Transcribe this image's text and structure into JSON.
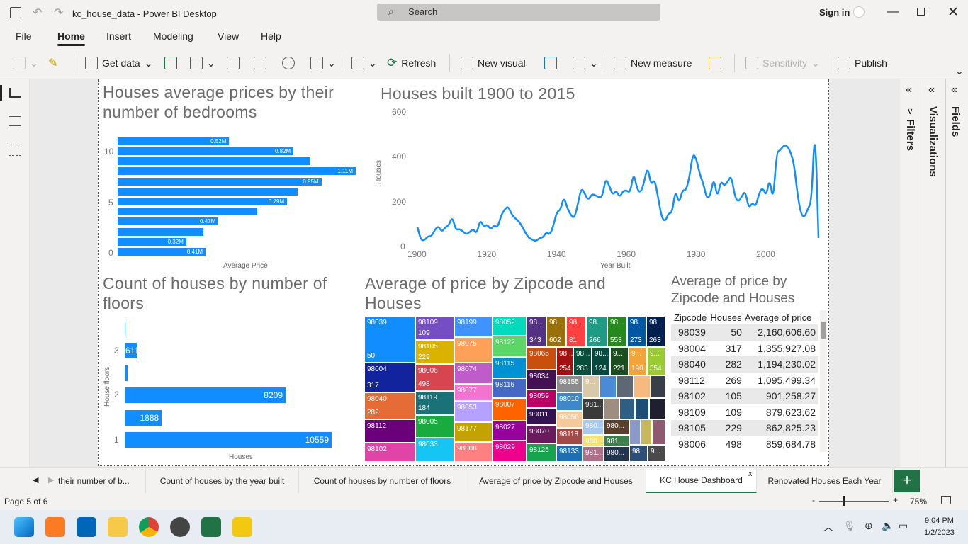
{
  "window": {
    "title": "kc_house_data - Power BI Desktop",
    "search_placeholder": "Search",
    "sign_in": "Sign in"
  },
  "menu": [
    "File",
    "Home",
    "Insert",
    "Modeling",
    "View",
    "Help"
  ],
  "ribbon": {
    "get_data": "Get data",
    "refresh": "Refresh",
    "new_visual": "New visual",
    "new_measure": "New measure",
    "sensitivity": "Sensitivity",
    "publish": "Publish"
  },
  "panes": {
    "filters": "Filters",
    "visualizations": "Visualizations",
    "fields": "Fields"
  },
  "bedrooms_chart": {
    "title": "Houses average prices by their number of bedrooms",
    "xlabel": "Average Price",
    "yticks": [
      "10",
      "5",
      "0"
    ],
    "bars": [
      {
        "v": 0.41,
        "label": "0.41M"
      },
      {
        "v": 0.32,
        "label": "0.32M"
      },
      {
        "v": 0.4,
        "label": ""
      },
      {
        "v": 0.47,
        "label": "0.47M"
      },
      {
        "v": 0.65,
        "label": ""
      },
      {
        "v": 0.79,
        "label": "0.79M"
      },
      {
        "v": 0.84,
        "label": ""
      },
      {
        "v": 0.95,
        "label": "0.95M"
      },
      {
        "v": 1.11,
        "label": "1.11M"
      },
      {
        "v": 0.9,
        "label": ""
      },
      {
        "v": 0.82,
        "label": "0.82M"
      },
      {
        "v": 0.52,
        "label": "0.52M"
      }
    ]
  },
  "years_chart": {
    "title": "Houses built 1900 to 2015",
    "xlabel": "Year Built",
    "ylabel": "Houses",
    "xticks": [
      "1900",
      "1920",
      "1940",
      "1960",
      "1980",
      "2000"
    ],
    "yticks": [
      "600",
      "400",
      "200",
      "0"
    ],
    "xlim": [
      1900,
      2015
    ],
    "ylim": [
      0,
      600
    ],
    "x": [
      1900,
      1901,
      1902,
      1903,
      1904,
      1905,
      1906,
      1907,
      1908,
      1909,
      1910,
      1911,
      1912,
      1913,
      1914,
      1915,
      1916,
      1917,
      1918,
      1919,
      1920,
      1921,
      1922,
      1923,
      1924,
      1925,
      1926,
      1927,
      1928,
      1929,
      1930,
      1931,
      1932,
      1933,
      1934,
      1935,
      1936,
      1937,
      1938,
      1939,
      1940,
      1941,
      1942,
      1943,
      1944,
      1945,
      1946,
      1947,
      1948,
      1949,
      1950,
      1951,
      1952,
      1953,
      1954,
      1955,
      1956,
      1957,
      1958,
      1959,
      1960,
      1961,
      1962,
      1963,
      1964,
      1965,
      1966,
      1967,
      1968,
      1969,
      1970,
      1971,
      1972,
      1973,
      1974,
      1975,
      1976,
      1977,
      1978,
      1979,
      1980,
      1981,
      1982,
      1983,
      1984,
      1985,
      1986,
      1987,
      1988,
      1989,
      1990,
      1991,
      1992,
      1993,
      1994,
      1995,
      1996,
      1997,
      1998,
      1999,
      2000,
      2001,
      2002,
      2003,
      2004,
      2005,
      2006,
      2007,
      2008,
      2009,
      2010,
      2011,
      2012,
      2013,
      2014,
      2015
    ],
    "y": [
      87,
      29,
      27,
      46,
      45,
      74,
      92,
      65,
      86,
      94,
      134,
      73,
      79,
      68,
      54,
      64,
      79,
      56,
      120,
      88,
      98,
      76,
      95,
      84,
      138,
      165,
      180,
      144,
      126,
      114,
      90,
      60,
      38,
      30,
      24,
      38,
      40,
      65,
      52,
      93,
      156,
      162,
      223,
      170,
      140,
      125,
      188,
      263,
      235,
      206,
      234,
      229,
      220,
      220,
      305,
      271,
      229,
      250,
      219,
      248,
      250,
      239,
      330,
      256,
      239,
      286,
      358,
      272,
      302,
      220,
      132,
      110,
      149,
      149,
      254,
      189,
      253,
      249,
      310,
      417,
      390,
      320,
      280,
      212,
      229,
      308,
      215,
      294,
      270,
      290,
      317,
      224,
      198,
      223,
      249,
      169,
      195,
      177,
      239,
      264,
      224,
      305,
      200,
      420,
      429,
      450,
      450,
      421,
      367,
      230,
      143,
      130,
      170,
      201,
      559,
      38
    ]
  },
  "floors_chart": {
    "title": "Count of houses by number of floors",
    "xlabel": "Houses",
    "ylabel": "House floors",
    "yticks": [
      "3",
      "2",
      "1"
    ],
    "xmax": 10559,
    "bars": [
      {
        "v": 10559,
        "label": "10559"
      },
      {
        "v": 1888,
        "label": "1888"
      },
      {
        "v": 8209,
        "label": "8209"
      },
      {
        "v": 161,
        "label": ""
      },
      {
        "v": 611,
        "label": "611"
      },
      {
        "v": 8,
        "label": ""
      }
    ]
  },
  "treemap": {
    "title": "Average of price by Zipcode and Houses",
    "cells": [
      {
        "t": "98039",
        "b": "50",
        "c": "#118DFF",
        "x": 0,
        "y": 0,
        "w": 72,
        "h": 66
      },
      {
        "t": "98004",
        "b": "317",
        "c": "#12239E",
        "x": 0,
        "y": 66,
        "w": 72,
        "h": 42
      },
      {
        "t": "98040",
        "b": "282",
        "c": "#E66C37",
        "x": 0,
        "y": 108,
        "w": 72,
        "h": 38
      },
      {
        "t": "98112",
        "b": "",
        "c": "#6B007B",
        "x": 0,
        "y": 146,
        "w": 72,
        "h": 33
      },
      {
        "t": "98102",
        "b": "",
        "c": "#E044A7",
        "x": 0,
        "y": 179,
        "w": 72,
        "h": 27
      },
      {
        "t": "98109",
        "b": "109",
        "c": "#744EC2",
        "x": 72,
        "y": 0,
        "w": 55,
        "h": 34
      },
      {
        "t": "98105",
        "b": "229",
        "c": "#D9B300",
        "x": 72,
        "y": 34,
        "w": 55,
        "h": 34
      },
      {
        "t": "98006",
        "b": "498",
        "c": "#D64550",
        "x": 72,
        "y": 68,
        "w": 55,
        "h": 38
      },
      {
        "t": "98119",
        "b": "184",
        "c": "#197278",
        "x": 72,
        "y": 106,
        "w": 55,
        "h": 34
      },
      {
        "t": "98005",
        "b": "",
        "c": "#1AAB40",
        "x": 72,
        "y": 140,
        "w": 55,
        "h": 32
      },
      {
        "t": "98033",
        "b": "",
        "c": "#15C6F4",
        "x": 72,
        "y": 172,
        "w": 55,
        "h": 34
      },
      {
        "t": "98199",
        "b": "",
        "c": "#4092FF",
        "x": 127,
        "y": 0,
        "w": 54,
        "h": 30
      },
      {
        "t": "98075",
        "b": "",
        "c": "#FFA058",
        "x": 127,
        "y": 30,
        "w": 54,
        "h": 36
      },
      {
        "t": "98074",
        "b": "",
        "c": "#BE5DC9",
        "x": 127,
        "y": 66,
        "w": 54,
        "h": 30
      },
      {
        "t": "98077",
        "b": "",
        "c": "#F472D0",
        "x": 127,
        "y": 96,
        "w": 54,
        "h": 24
      },
      {
        "t": "98053",
        "b": "",
        "c": "#B5A1FF",
        "x": 127,
        "y": 120,
        "w": 54,
        "h": 30
      },
      {
        "t": "98177",
        "b": "",
        "c": "#C4A200",
        "x": 127,
        "y": 150,
        "w": 54,
        "h": 28
      },
      {
        "t": "98008",
        "b": "",
        "c": "#FF8080",
        "x": 127,
        "y": 178,
        "w": 54,
        "h": 28
      },
      {
        "t": "98052",
        "b": "",
        "c": "#00DBBC",
        "x": 181,
        "y": 0,
        "w": 48,
        "h": 28
      },
      {
        "t": "98122",
        "b": "",
        "c": "#5BD667",
        "x": 181,
        "y": 28,
        "w": 48,
        "h": 30
      },
      {
        "t": "98115",
        "b": "",
        "c": "#0091D5",
        "x": 181,
        "y": 58,
        "w": 48,
        "h": 30
      },
      {
        "t": "98116",
        "b": "",
        "c": "#4668C5",
        "x": 181,
        "y": 88,
        "w": 48,
        "h": 28
      },
      {
        "t": "98007",
        "b": "",
        "c": "#FF6300",
        "x": 181,
        "y": 116,
        "w": 48,
        "h": 32
      },
      {
        "t": "98027",
        "b": "",
        "c": "#99009A",
        "x": 181,
        "y": 148,
        "w": 48,
        "h": 28
      },
      {
        "t": "98029",
        "b": "",
        "c": "#EC008C",
        "x": 181,
        "y": 176,
        "w": 48,
        "h": 30
      },
      {
        "t": "98...",
        "b": "343",
        "c": "#533285",
        "x": 229,
        "y": 0,
        "w": 28,
        "h": 44
      },
      {
        "t": "98...",
        "b": "602",
        "c": "#99700A",
        "x": 257,
        "y": 0,
        "w": 28,
        "h": 44
      },
      {
        "t": "98...",
        "b": "81",
        "c": "#FF4141",
        "x": 285,
        "y": 0,
        "w": 28,
        "h": 44
      },
      {
        "t": "98...",
        "b": "266",
        "c": "#1F9A85",
        "x": 313,
        "y": 0,
        "w": 30,
        "h": 44
      },
      {
        "t": "98...",
        "b": "553",
        "c": "#25891C",
        "x": 343,
        "y": 0,
        "w": 28,
        "h": 44
      },
      {
        "t": "98...",
        "b": "273",
        "c": "#0057A2",
        "x": 371,
        "y": 0,
        "w": 27,
        "h": 44
      },
      {
        "t": "98...",
        "b": "263",
        "c": "#002050",
        "x": 398,
        "y": 0,
        "w": 27,
        "h": 44
      },
      {
        "t": "98065",
        "b": "",
        "c": "#C94F0F",
        "x": 229,
        "y": 44,
        "w": 42,
        "h": 32
      },
      {
        "t": "98034",
        "b": "",
        "c": "#450F54",
        "x": 229,
        "y": 76,
        "w": 42,
        "h": 28
      },
      {
        "t": "98059",
        "b": "",
        "c": "#B60064",
        "x": 229,
        "y": 104,
        "w": 42,
        "h": 26
      },
      {
        "t": "98011",
        "b": "",
        "c": "#34124F",
        "x": 229,
        "y": 130,
        "w": 42,
        "h": 24
      },
      {
        "t": "98070",
        "b": "",
        "c": "#6A1A5E",
        "x": 229,
        "y": 154,
        "w": 42,
        "h": 26
      },
      {
        "t": "98125",
        "b": "",
        "c": "#16A44C",
        "x": 229,
        "y": 180,
        "w": 42,
        "h": 26
      },
      {
        "t": "98...",
        "b": "254",
        "c": "#A31010",
        "x": 271,
        "y": 44,
        "w": 24,
        "h": 40
      },
      {
        "t": "98...",
        "b": "283",
        "c": "#074F3A",
        "x": 295,
        "y": 44,
        "w": 26,
        "h": 40
      },
      {
        "t": "98...",
        "b": "124",
        "c": "#064A3F",
        "x": 321,
        "y": 44,
        "w": 26,
        "h": 40
      },
      {
        "t": "9...",
        "b": "221",
        "c": "#1B4D1E",
        "x": 347,
        "y": 44,
        "w": 26,
        "h": 40
      },
      {
        "t": "9...",
        "b": "190",
        "c": "#F2A33A",
        "x": 373,
        "y": 44,
        "w": 26,
        "h": 40
      },
      {
        "t": "9...",
        "b": "354",
        "c": "#9BCB34",
        "x": 399,
        "y": 44,
        "w": 26,
        "h": 40
      },
      {
        "t": "98155",
        "b": "",
        "c": "#8C8C8C",
        "x": 271,
        "y": 84,
        "w": 37,
        "h": 24
      },
      {
        "t": "9...",
        "b": "",
        "c": "#D8C9A8",
        "x": 308,
        "y": 84,
        "w": 24,
        "h": 32
      },
      {
        "t": "",
        "b": "",
        "c": "#4A8BD8",
        "x": 332,
        "y": 84,
        "w": 24,
        "h": 32
      },
      {
        "t": "",
        "b": "",
        "c": "#5E6873",
        "x": 356,
        "y": 84,
        "w": 24,
        "h": 32
      },
      {
        "t": "",
        "b": "",
        "c": "#F6B980",
        "x": 380,
        "y": 84,
        "w": 24,
        "h": 32
      },
      {
        "t": "",
        "b": "",
        "c": "#383F48",
        "x": 404,
        "y": 84,
        "w": 21,
        "h": 32
      },
      {
        "t": "98010",
        "b": "",
        "c": "#3F87C8",
        "x": 271,
        "y": 108,
        "w": 37,
        "h": 26
      },
      {
        "t": "981...",
        "b": "",
        "c": "#3A3A3A",
        "x": 308,
        "y": 116,
        "w": 30,
        "h": 30
      },
      {
        "t": "",
        "b": "",
        "c": "#9F8E7F",
        "x": 338,
        "y": 116,
        "w": 22,
        "h": 30
      },
      {
        "t": "",
        "b": "",
        "c": "#2F5E85",
        "x": 360,
        "y": 116,
        "w": 22,
        "h": 30
      },
      {
        "t": "",
        "b": "",
        "c": "#1D4F76",
        "x": 382,
        "y": 116,
        "w": 20,
        "h": 30
      },
      {
        "t": "",
        "b": "",
        "c": "#1F1F2F",
        "x": 402,
        "y": 116,
        "w": 23,
        "h": 30
      },
      {
        "t": "98056",
        "b": "",
        "c": "#F7C99A",
        "x": 271,
        "y": 134,
        "w": 37,
        "h": 24
      },
      {
        "t": "980...",
        "b": "",
        "c": "#A8C8EF",
        "x": 308,
        "y": 146,
        "w": 30,
        "h": 22
      },
      {
        "t": "980...",
        "b": "",
        "c": "#5B3F2F",
        "x": 338,
        "y": 146,
        "w": 36,
        "h": 22
      },
      {
        "t": "",
        "b": "",
        "c": "#8B9AC8",
        "x": 374,
        "y": 146,
        "w": 16,
        "h": 36
      },
      {
        "t": "",
        "b": "",
        "c": "#C7B85E",
        "x": 390,
        "y": 146,
        "w": 16,
        "h": 36
      },
      {
        "t": "",
        "b": "",
        "c": "#8D5A71",
        "x": 406,
        "y": 146,
        "w": 19,
        "h": 36
      },
      {
        "t": "98118",
        "b": "",
        "c": "#A14A4A",
        "x": 271,
        "y": 158,
        "w": 37,
        "h": 24
      },
      {
        "t": "980...",
        "b": "",
        "c": "#F6E36F",
        "x": 308,
        "y": 168,
        "w": 30,
        "h": 16
      },
      {
        "t": "981...",
        "b": "",
        "c": "#3C7F4A",
        "x": 338,
        "y": 168,
        "w": 36,
        "h": 16
      },
      {
        "t": "98133",
        "b": "",
        "c": "#1C6FB3",
        "x": 271,
        "y": 182,
        "w": 37,
        "h": 24
      },
      {
        "t": "981...",
        "b": "",
        "c": "#B06F88",
        "x": 308,
        "y": 184,
        "w": 30,
        "h": 22
      },
      {
        "t": "980...",
        "b": "",
        "c": "#23344F",
        "x": 338,
        "y": 184,
        "w": 36,
        "h": 22
      },
      {
        "t": "98...",
        "b": "",
        "c": "#2E4E7A",
        "x": 374,
        "y": 182,
        "w": 26,
        "h": 24
      },
      {
        "t": "9...",
        "b": "",
        "c": "#4A4A4A",
        "x": 400,
        "y": 182,
        "w": 25,
        "h": 24
      }
    ]
  },
  "zip_table": {
    "title": "Average of price by Zipcode and Houses",
    "headers": [
      "Zipcode",
      "Houses",
      "Average of price"
    ],
    "rows": [
      [
        "98039",
        "50",
        "2,160,606.60"
      ],
      [
        "98004",
        "317",
        "1,355,927.08"
      ],
      [
        "98040",
        "282",
        "1,194,230.02"
      ],
      [
        "98112",
        "269",
        "1,095,499.34"
      ],
      [
        "98102",
        "105",
        "901,258.27"
      ],
      [
        "98109",
        "109",
        "879,623.62"
      ],
      [
        "98105",
        "229",
        "862,825.23"
      ],
      [
        "98006",
        "498",
        "859,684.78"
      ]
    ]
  },
  "tabs": [
    "their number of b...",
    "Count of houses by the year built",
    "Count of houses by number of floors",
    "Average of price by Zipcode and Houses",
    "KC House Dashboard",
    "Renovated Houses Each Year"
  ],
  "active_tab": "KC House Dashboard",
  "status": {
    "page": "Page 5 of 6",
    "zoom": "75%"
  },
  "taskbar": {
    "time": "9:04 PM",
    "date": "1/2/2023"
  }
}
